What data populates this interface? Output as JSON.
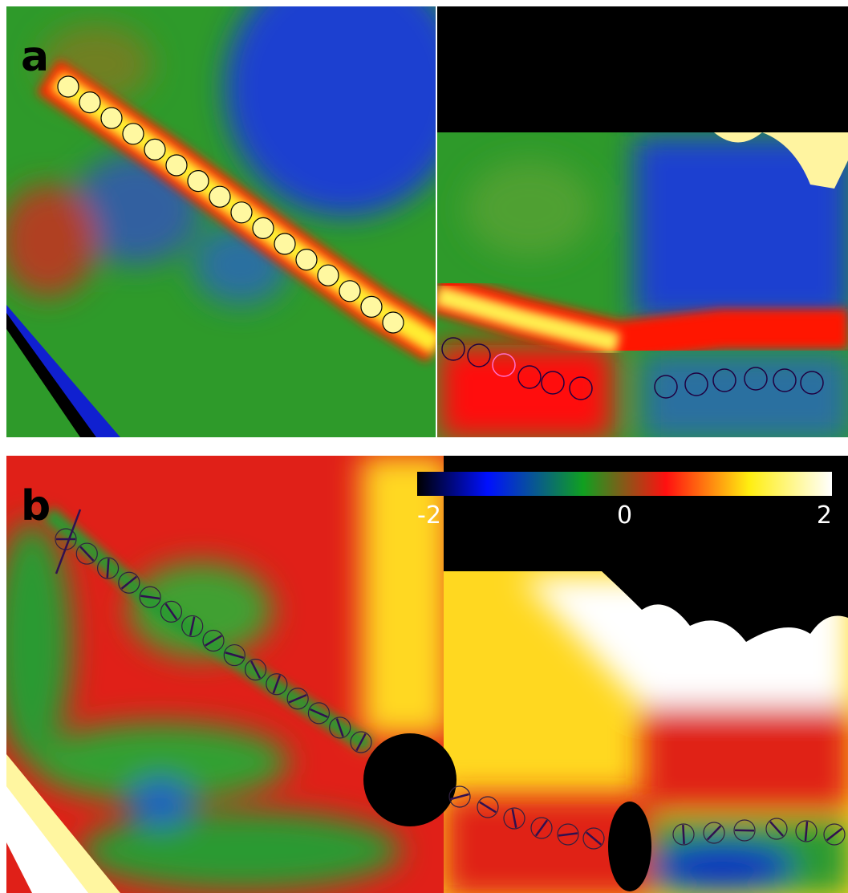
{
  "panels": [
    {
      "label": "a"
    },
    {
      "label": "b"
    }
  ],
  "colorbar": {
    "lim": [
      -2,
      2
    ],
    "ticks": [
      -2,
      0,
      2
    ]
  }
}
